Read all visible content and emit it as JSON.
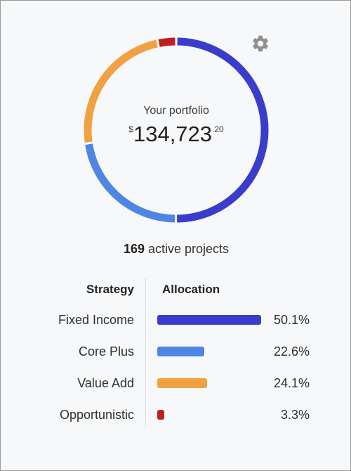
{
  "portfolio": {
    "label": "Your portfolio",
    "currency": "$",
    "amount": "134,723",
    "cents": ".20"
  },
  "projects": {
    "count": "169",
    "suffix": " active projects"
  },
  "table": {
    "header_strategy": "Strategy",
    "header_allocation": "Allocation",
    "rows": [
      {
        "name": "Fixed Income",
        "percent_label": "50.1%",
        "value": 50.1,
        "color": "#3a3dcc"
      },
      {
        "name": "Core Plus",
        "percent_label": "22.6%",
        "value": 22.6,
        "color": "#4f86e3"
      },
      {
        "name": "Value Add",
        "percent_label": "24.1%",
        "value": 24.1,
        "color": "#f0a142"
      },
      {
        "name": "Opportunistic",
        "percent_label": "3.3%",
        "value": 3.3,
        "color": "#c01f1f"
      }
    ]
  },
  "icons": {
    "settings": "gear-icon"
  }
}
